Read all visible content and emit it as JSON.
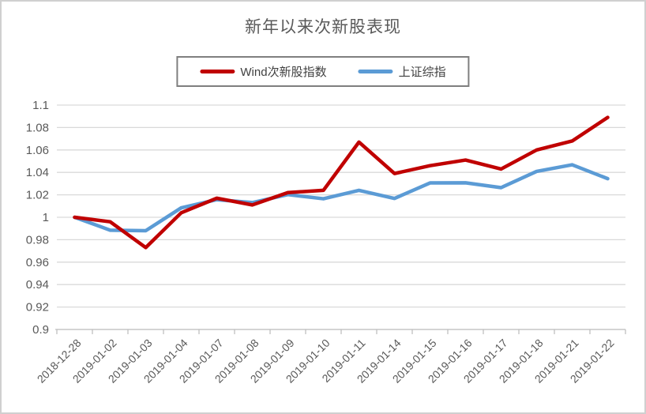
{
  "chart_data": {
    "type": "line",
    "title": "新年以来次新股表现",
    "xlabel": "",
    "ylabel": "",
    "grid": true,
    "legend_position": "top",
    "ylim": [
      0.9,
      1.1
    ],
    "ytick_step": 0.02,
    "ytick_labels": [
      "1.1",
      "1.08",
      "1.06",
      "1.04",
      "1.02",
      "1",
      "0.98",
      "0.96",
      "0.94",
      "0.92",
      "0.9"
    ],
    "categories": [
      "2018-12-28",
      "2019-01-02",
      "2019-01-03",
      "2019-01-04",
      "2019-01-07",
      "2019-01-08",
      "2019-01-09",
      "2019-01-10",
      "2019-01-11",
      "2019-01-14",
      "2019-01-15",
      "2019-01-16",
      "2019-01-17",
      "2019-01-18",
      "2019-01-21",
      "2019-01-22"
    ],
    "series": [
      {
        "key": "wind-cxg-index",
        "name": "Wind次新股指数",
        "color": "#C00000",
        "values": [
          1.0,
          0.996,
          0.973,
          1.004,
          1.017,
          1.011,
          1.022,
          1.024,
          1.067,
          1.039,
          1.046,
          1.051,
          1.043,
          1.06,
          1.068,
          1.089
        ]
      },
      {
        "key": "sse-composite",
        "name": "上证综指",
        "color": "#5B9BD5",
        "values": [
          1.0,
          0.9885,
          0.988,
          1.0084,
          1.0157,
          1.0131,
          1.0202,
          1.0165,
          1.024,
          1.0168,
          1.0306,
          1.0307,
          1.0264,
          1.0409,
          1.0468,
          1.0344
        ]
      }
    ]
  },
  "colors": {
    "gridline": "#D9D9D9",
    "axis_line": "#BFBFBF",
    "axis_text": "#595959",
    "title_text": "#595959",
    "legend_text": "#404040",
    "legend_border": "#7F7F7F",
    "frame_border": "#D0D0D0"
  }
}
